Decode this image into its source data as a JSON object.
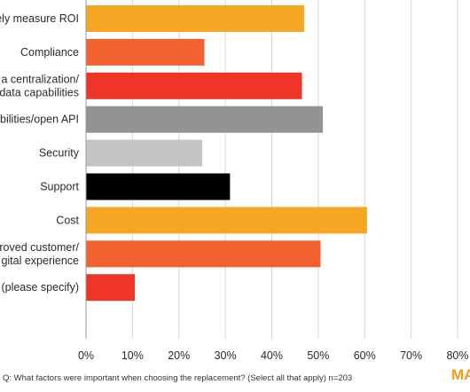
{
  "chart_data": {
    "type": "bar",
    "orientation": "horizontal",
    "categories": [
      [
        "ely measure ROI"
      ],
      [
        "Compliance"
      ],
      [
        "a centralization/",
        "data capabilities"
      ],
      [
        "bilities/open API"
      ],
      [
        "Security"
      ],
      [
        "Support"
      ],
      [
        "Cost"
      ],
      [
        "roved customer/",
        "gital experience"
      ],
      [
        "r (please specify)"
      ]
    ],
    "values": [
      47,
      25.5,
      46.5,
      51,
      25,
      31,
      60.5,
      50.5,
      10.5
    ],
    "colors": [
      "#f5a623",
      "#f26230",
      "#ef3428",
      "#939393",
      "#c4c4c4",
      "#000000",
      "#f5a623",
      "#f26230",
      "#ef3428"
    ],
    "xlim": [
      0,
      80
    ],
    "x_ticks": [
      0,
      10,
      20,
      30,
      40,
      50,
      60,
      70,
      80
    ],
    "tick_labels": [
      "0%",
      "10%",
      "20%",
      "30%",
      "40%",
      "50%",
      "60%",
      "70%",
      "80%"
    ],
    "grid": true,
    "title": "",
    "xlabel": "",
    "ylabel": ""
  },
  "footnote": "Q: What factors were important when choosing the replacement? (Select all that apply) n=203",
  "logo_text": "MA"
}
